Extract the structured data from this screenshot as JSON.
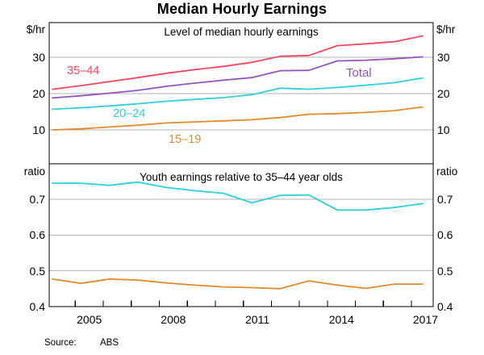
{
  "title": "Median Hourly Earnings",
  "source": {
    "label": "Source:",
    "value": "ABS"
  },
  "colors": {
    "age_35_44": "#f2475e",
    "total": "#9553bc",
    "age_20_24": "#2fcfd8",
    "age_15_19": "#e08b2d",
    "gridline": "#b3b3b3",
    "axis": "#000000"
  },
  "chart_data": [
    {
      "type": "line",
      "title": "Level of median hourly earnings",
      "unit": "$/hr",
      "x": [
        2004,
        2005,
        2006,
        2007,
        2008,
        2009,
        2010,
        2011,
        2012,
        2013,
        2014,
        2015,
        2016,
        2017
      ],
      "ylim": [
        0,
        40
      ],
      "yticks": [
        {
          "v": 10,
          "label": "10",
          "grid": true
        },
        {
          "v": 20,
          "label": "20",
          "grid": true
        },
        {
          "v": 30,
          "label": "30",
          "grid": true
        }
      ],
      "series": [
        {
          "name": "35–44",
          "color": "#f2475e",
          "values": [
            21.2,
            22.2,
            23.3,
            24.4,
            25.6,
            26.6,
            27.5,
            28.6,
            30.3,
            30.5,
            33.2,
            33.7,
            34.3,
            35.9
          ]
        },
        {
          "name": "Total",
          "color": "#9553bc",
          "values": [
            18.8,
            19.4,
            20.1,
            20.9,
            22.0,
            22.9,
            23.7,
            24.4,
            26.3,
            26.4,
            29.0,
            29.2,
            29.6,
            30.1
          ]
        },
        {
          "name": "20–24",
          "color": "#2fcfd8",
          "values": [
            15.7,
            16.1,
            16.6,
            17.2,
            17.9,
            18.4,
            18.9,
            19.7,
            21.5,
            21.2,
            21.7,
            22.3,
            23.0,
            24.3
          ]
        },
        {
          "name": "15–19",
          "color": "#e08b2d",
          "values": [
            10.0,
            10.3,
            10.8,
            11.3,
            11.9,
            12.2,
            12.5,
            12.8,
            13.4,
            14.3,
            14.5,
            14.8,
            15.3,
            16.3
          ]
        }
      ]
    },
    {
      "type": "line",
      "title": "Youth earnings relative to 35–44 year olds",
      "unit": "ratio",
      "x": [
        2004,
        2005,
        2006,
        2007,
        2008,
        2009,
        2010,
        2011,
        2012,
        2013,
        2014,
        2015,
        2016,
        2017
      ],
      "ylim": [
        0.4,
        0.8
      ],
      "yticks": [
        {
          "v": 0.4,
          "label": "0.4",
          "grid": false
        },
        {
          "v": 0.5,
          "label": "0.5",
          "grid": true
        },
        {
          "v": 0.6,
          "label": "0.6",
          "grid": true
        },
        {
          "v": 0.7,
          "label": "0.7",
          "grid": true
        }
      ],
      "series": [
        {
          "name": "20–24",
          "color": "#2fcfd8",
          "values": [
            0.745,
            0.745,
            0.739,
            0.748,
            0.733,
            0.724,
            0.717,
            0.69,
            0.711,
            0.712,
            0.67,
            0.67,
            0.677,
            0.688
          ]
        },
        {
          "name": "15–19",
          "color": "#e08b2d",
          "values": [
            0.477,
            0.465,
            0.477,
            0.474,
            0.466,
            0.46,
            0.455,
            0.453,
            0.45,
            0.472,
            0.46,
            0.451,
            0.463,
            0.463
          ]
        }
      ]
    }
  ],
  "xticks": [
    {
      "year": 2005,
      "label": "2005"
    },
    {
      "year": 2006,
      "label": ""
    },
    {
      "year": 2007,
      "label": ""
    },
    {
      "year": 2008,
      "label": "2008"
    },
    {
      "year": 2009,
      "label": ""
    },
    {
      "year": 2010,
      "label": ""
    },
    {
      "year": 2011,
      "label": "2011"
    },
    {
      "year": 2012,
      "label": ""
    },
    {
      "year": 2013,
      "label": ""
    },
    {
      "year": 2014,
      "label": "2014"
    },
    {
      "year": 2015,
      "label": ""
    },
    {
      "year": 2016,
      "label": ""
    },
    {
      "year": 2017,
      "label": "2017"
    }
  ]
}
